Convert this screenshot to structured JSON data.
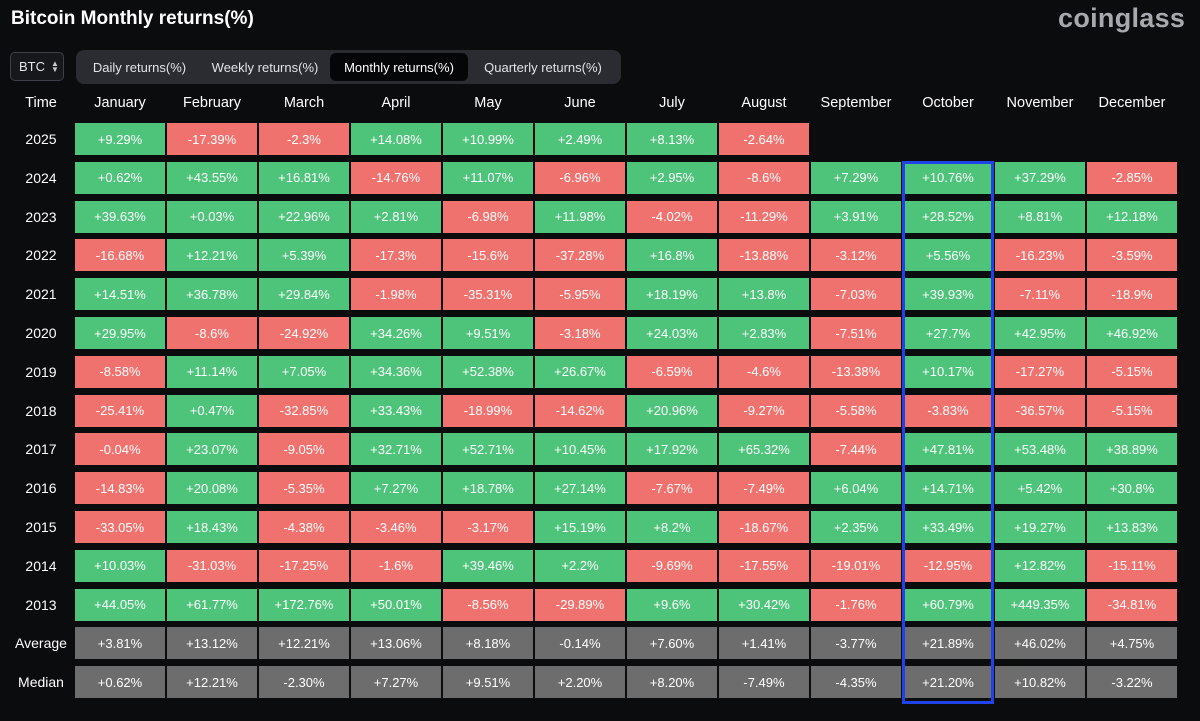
{
  "page": {
    "title": "Bitcoin Monthly returns(%)",
    "brand": "coinglass"
  },
  "asset_selector": {
    "value": "BTC",
    "icon": "up-down-chevron-icon"
  },
  "tabs": [
    {
      "label": "Daily returns(%)",
      "active": false
    },
    {
      "label": "Weekly returns(%)",
      "active": false
    },
    {
      "label": "Monthly returns(%)",
      "active": true
    },
    {
      "label": "Quarterly returns(%)",
      "active": false
    }
  ],
  "colors": {
    "positive": "#4ec47b",
    "negative": "#f0726e",
    "summary": "#6d6d6d",
    "highlight": "#1f43e8",
    "background": "#0b0c0e"
  },
  "chart_data": {
    "type": "heatmap",
    "title": "Bitcoin Monthly returns(%)",
    "corner_label": "Time",
    "columns": [
      "January",
      "February",
      "March",
      "April",
      "May",
      "June",
      "July",
      "August",
      "September",
      "October",
      "November",
      "December"
    ],
    "highlighted_column": "October",
    "rows": [
      {
        "label": "2025",
        "values": [
          "+9.29%",
          "-17.39%",
          "-2.3%",
          "+14.08%",
          "+10.99%",
          "+2.49%",
          "+8.13%",
          "-2.64%",
          "",
          "",
          "",
          ""
        ]
      },
      {
        "label": "2024",
        "values": [
          "+0.62%",
          "+43.55%",
          "+16.81%",
          "-14.76%",
          "+11.07%",
          "-6.96%",
          "+2.95%",
          "-8.6%",
          "+7.29%",
          "+10.76%",
          "+37.29%",
          "-2.85%"
        ]
      },
      {
        "label": "2023",
        "values": [
          "+39.63%",
          "+0.03%",
          "+22.96%",
          "+2.81%",
          "-6.98%",
          "+11.98%",
          "-4.02%",
          "-11.29%",
          "+3.91%",
          "+28.52%",
          "+8.81%",
          "+12.18%"
        ]
      },
      {
        "label": "2022",
        "values": [
          "-16.68%",
          "+12.21%",
          "+5.39%",
          "-17.3%",
          "-15.6%",
          "-37.28%",
          "+16.8%",
          "-13.88%",
          "-3.12%",
          "+5.56%",
          "-16.23%",
          "-3.59%"
        ]
      },
      {
        "label": "2021",
        "values": [
          "+14.51%",
          "+36.78%",
          "+29.84%",
          "-1.98%",
          "-35.31%",
          "-5.95%",
          "+18.19%",
          "+13.8%",
          "-7.03%",
          "+39.93%",
          "-7.11%",
          "-18.9%"
        ]
      },
      {
        "label": "2020",
        "values": [
          "+29.95%",
          "-8.6%",
          "-24.92%",
          "+34.26%",
          "+9.51%",
          "-3.18%",
          "+24.03%",
          "+2.83%",
          "-7.51%",
          "+27.7%",
          "+42.95%",
          "+46.92%"
        ]
      },
      {
        "label": "2019",
        "values": [
          "-8.58%",
          "+11.14%",
          "+7.05%",
          "+34.36%",
          "+52.38%",
          "+26.67%",
          "-6.59%",
          "-4.6%",
          "-13.38%",
          "+10.17%",
          "-17.27%",
          "-5.15%"
        ]
      },
      {
        "label": "2018",
        "values": [
          "-25.41%",
          "+0.47%",
          "-32.85%",
          "+33.43%",
          "-18.99%",
          "-14.62%",
          "+20.96%",
          "-9.27%",
          "-5.58%",
          "-3.83%",
          "-36.57%",
          "-5.15%"
        ]
      },
      {
        "label": "2017",
        "values": [
          "-0.04%",
          "+23.07%",
          "-9.05%",
          "+32.71%",
          "+52.71%",
          "+10.45%",
          "+17.92%",
          "+65.32%",
          "-7.44%",
          "+47.81%",
          "+53.48%",
          "+38.89%"
        ]
      },
      {
        "label": "2016",
        "values": [
          "-14.83%",
          "+20.08%",
          "-5.35%",
          "+7.27%",
          "+18.78%",
          "+27.14%",
          "-7.67%",
          "-7.49%",
          "+6.04%",
          "+14.71%",
          "+5.42%",
          "+30.8%"
        ]
      },
      {
        "label": "2015",
        "values": [
          "-33.05%",
          "+18.43%",
          "-4.38%",
          "-3.46%",
          "-3.17%",
          "+15.19%",
          "+8.2%",
          "-18.67%",
          "+2.35%",
          "+33.49%",
          "+19.27%",
          "+13.83%"
        ]
      },
      {
        "label": "2014",
        "values": [
          "+10.03%",
          "-31.03%",
          "-17.25%",
          "-1.6%",
          "+39.46%",
          "+2.2%",
          "-9.69%",
          "-17.55%",
          "-19.01%",
          "-12.95%",
          "+12.82%",
          "-15.11%"
        ]
      },
      {
        "label": "2013",
        "values": [
          "+44.05%",
          "+61.77%",
          "+172.76%",
          "+50.01%",
          "-8.56%",
          "-29.89%",
          "+9.6%",
          "+30.42%",
          "-1.76%",
          "+60.79%",
          "+449.35%",
          "-34.81%"
        ]
      }
    ],
    "summary_rows": [
      {
        "label": "Average",
        "values": [
          "+3.81%",
          "+13.12%",
          "+12.21%",
          "+13.06%",
          "+8.18%",
          "-0.14%",
          "+7.60%",
          "+1.41%",
          "-3.77%",
          "+21.89%",
          "+46.02%",
          "+4.75%"
        ]
      },
      {
        "label": "Median",
        "values": [
          "+0.62%",
          "+12.21%",
          "-2.30%",
          "+7.27%",
          "+9.51%",
          "+2.20%",
          "+8.20%",
          "-7.49%",
          "-4.35%",
          "+21.20%",
          "+10.82%",
          "-3.22%"
        ]
      }
    ]
  }
}
